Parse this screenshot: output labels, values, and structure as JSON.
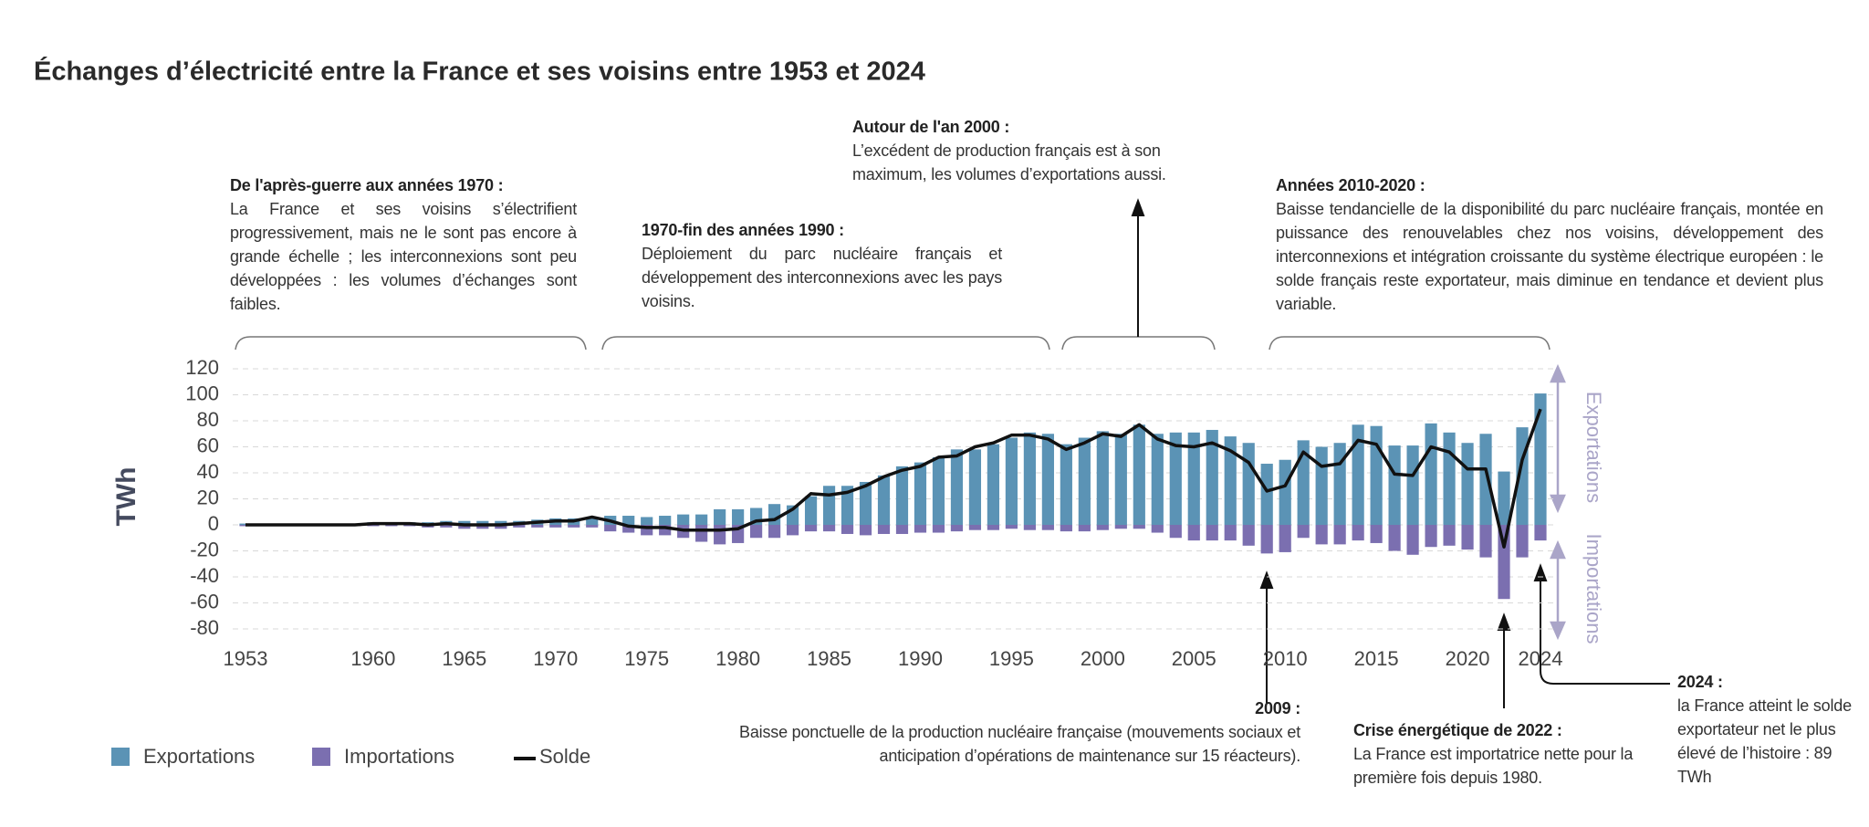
{
  "chart_data": {
    "type": "bar",
    "title": "Échanges d’électricité entre la France et ses voisins entre 1953 et 2024",
    "y_label": "TWh",
    "x": [
      1953,
      1954,
      1955,
      1956,
      1957,
      1958,
      1959,
      1960,
      1961,
      1962,
      1963,
      1964,
      1965,
      1966,
      1967,
      1968,
      1969,
      1970,
      1971,
      1972,
      1973,
      1974,
      1975,
      1976,
      1977,
      1978,
      1979,
      1980,
      1981,
      1982,
      1983,
      1984,
      1985,
      1986,
      1987,
      1988,
      1989,
      1990,
      1991,
      1992,
      1993,
      1994,
      1995,
      1996,
      1997,
      1998,
      1999,
      2000,
      2001,
      2002,
      2003,
      2004,
      2005,
      2006,
      2007,
      2008,
      2009,
      2010,
      2011,
      2012,
      2013,
      2014,
      2015,
      2016,
      2017,
      2018,
      2019,
      2020,
      2021,
      2022,
      2023,
      2024
    ],
    "series": [
      {
        "name": "Exportations",
        "type": "bar",
        "color": "#5b93b5",
        "values": [
          1,
          1,
          1,
          1,
          1,
          1,
          1,
          2,
          2,
          2,
          2,
          3,
          3,
          3,
          3,
          3,
          4,
          5,
          5,
          5,
          7,
          7,
          6,
          7,
          8,
          8,
          12,
          12,
          13,
          16,
          15,
          22,
          30,
          30,
          33,
          38,
          45,
          48,
          52,
          58,
          58,
          62,
          67,
          71,
          70,
          62,
          67,
          72,
          70,
          77,
          70,
          71,
          71,
          73,
          68,
          63,
          47,
          50,
          65,
          60,
          63,
          77,
          76,
          61,
          61,
          78,
          71,
          63,
          70,
          41,
          75,
          101
        ]
      },
      {
        "name": "Importations",
        "type": "bar",
        "color": "#7b6fb0",
        "values": [
          -1,
          -1,
          -1,
          -1,
          -1,
          -1,
          -1,
          -1,
          -1,
          -1,
          -2,
          -2,
          -3,
          -3,
          -3,
          -2,
          -2,
          -2,
          -2,
          -2,
          -5,
          -6,
          -8,
          -8,
          -10,
          -13,
          -15,
          -14,
          -10,
          -10,
          -8,
          -5,
          -5,
          -7,
          -8,
          -7,
          -7,
          -6,
          -6,
          -5,
          -4,
          -4,
          -3,
          -4,
          -4,
          -5,
          -5,
          -4,
          -3,
          -3,
          -6,
          -10,
          -12,
          -12,
          -12,
          -16,
          -22,
          -21,
          -10,
          -15,
          -15,
          -12,
          -14,
          -20,
          -23,
          -17,
          -16,
          -19,
          -25,
          -57,
          -25,
          -12
        ]
      },
      {
        "name": "Solde",
        "type": "line",
        "color": "#111111",
        "values": [
          0,
          0,
          0,
          0,
          0,
          0,
          0,
          1,
          1,
          1,
          0,
          1,
          0,
          0,
          0,
          1,
          2,
          3,
          3,
          6,
          3,
          -1,
          -2,
          -2,
          -4,
          -4,
          -4,
          -3,
          3,
          4,
          12,
          24,
          23,
          25,
          30,
          37,
          42,
          45,
          52,
          53,
          60,
          63,
          69,
          69,
          66,
          58,
          63,
          70,
          68,
          77,
          66,
          61,
          60,
          63,
          57,
          48,
          26,
          30,
          56,
          45,
          47,
          65,
          62,
          39,
          38,
          60,
          56,
          43,
          43,
          -17,
          50,
          89
        ]
      }
    ],
    "xlim": [
      1953,
      2024
    ],
    "xticks": [
      1953,
      1960,
      1965,
      1970,
      1975,
      1980,
      1985,
      1990,
      1995,
      2000,
      2005,
      2010,
      2015,
      2020,
      2024
    ],
    "ylim": [
      -80,
      120
    ],
    "yticks": [
      -80,
      -60,
      -40,
      -20,
      0,
      20,
      40,
      60,
      80,
      100,
      120
    ],
    "grid": true,
    "side_labels": [
      "Exportations",
      "Importations"
    ],
    "annotations": [
      {
        "title": "De l'après-guerre aux années 1970 :",
        "text": "La France et ses voisins s’électrifient progressivement, mais ne le sont pas encore à grande échelle ; les interconnexions sont peu développées : les volumes d’échanges sont faibles."
      },
      {
        "title": "1970-fin des années 1990 :",
        "text": "Déploiement du parc nucléaire français et développement des interconnexions avec les pays voisins."
      },
      {
        "title": "Autour de l'an 2000 :",
        "text": "L’excédent de production français est à son maximum, les volumes d’exportations aussi."
      },
      {
        "title": "Années 2010-2020 :",
        "text": "Baisse tendancielle de la disponibilité du parc nucléaire français, montée en puissance des renouvelables chez nos voisins, développement des interconnexions et intégration croissante du système électrique européen : le solde français reste exportateur, mais diminue en tendance et devient plus variable."
      },
      {
        "title": "2009 :",
        "text": "Baisse ponctuelle de la production nucléaire française (mouvements sociaux et anticipation d’opérations de maintenance sur 15 réacteurs)."
      },
      {
        "title": "Crise énergétique de 2022 :",
        "text": "La France est importatrice nette pour la première fois depuis 1980."
      },
      {
        "title": "2024 :",
        "text": "la France atteint le solde exportateur net le plus élevé de l’histoire : 89 TWh"
      }
    ]
  }
}
